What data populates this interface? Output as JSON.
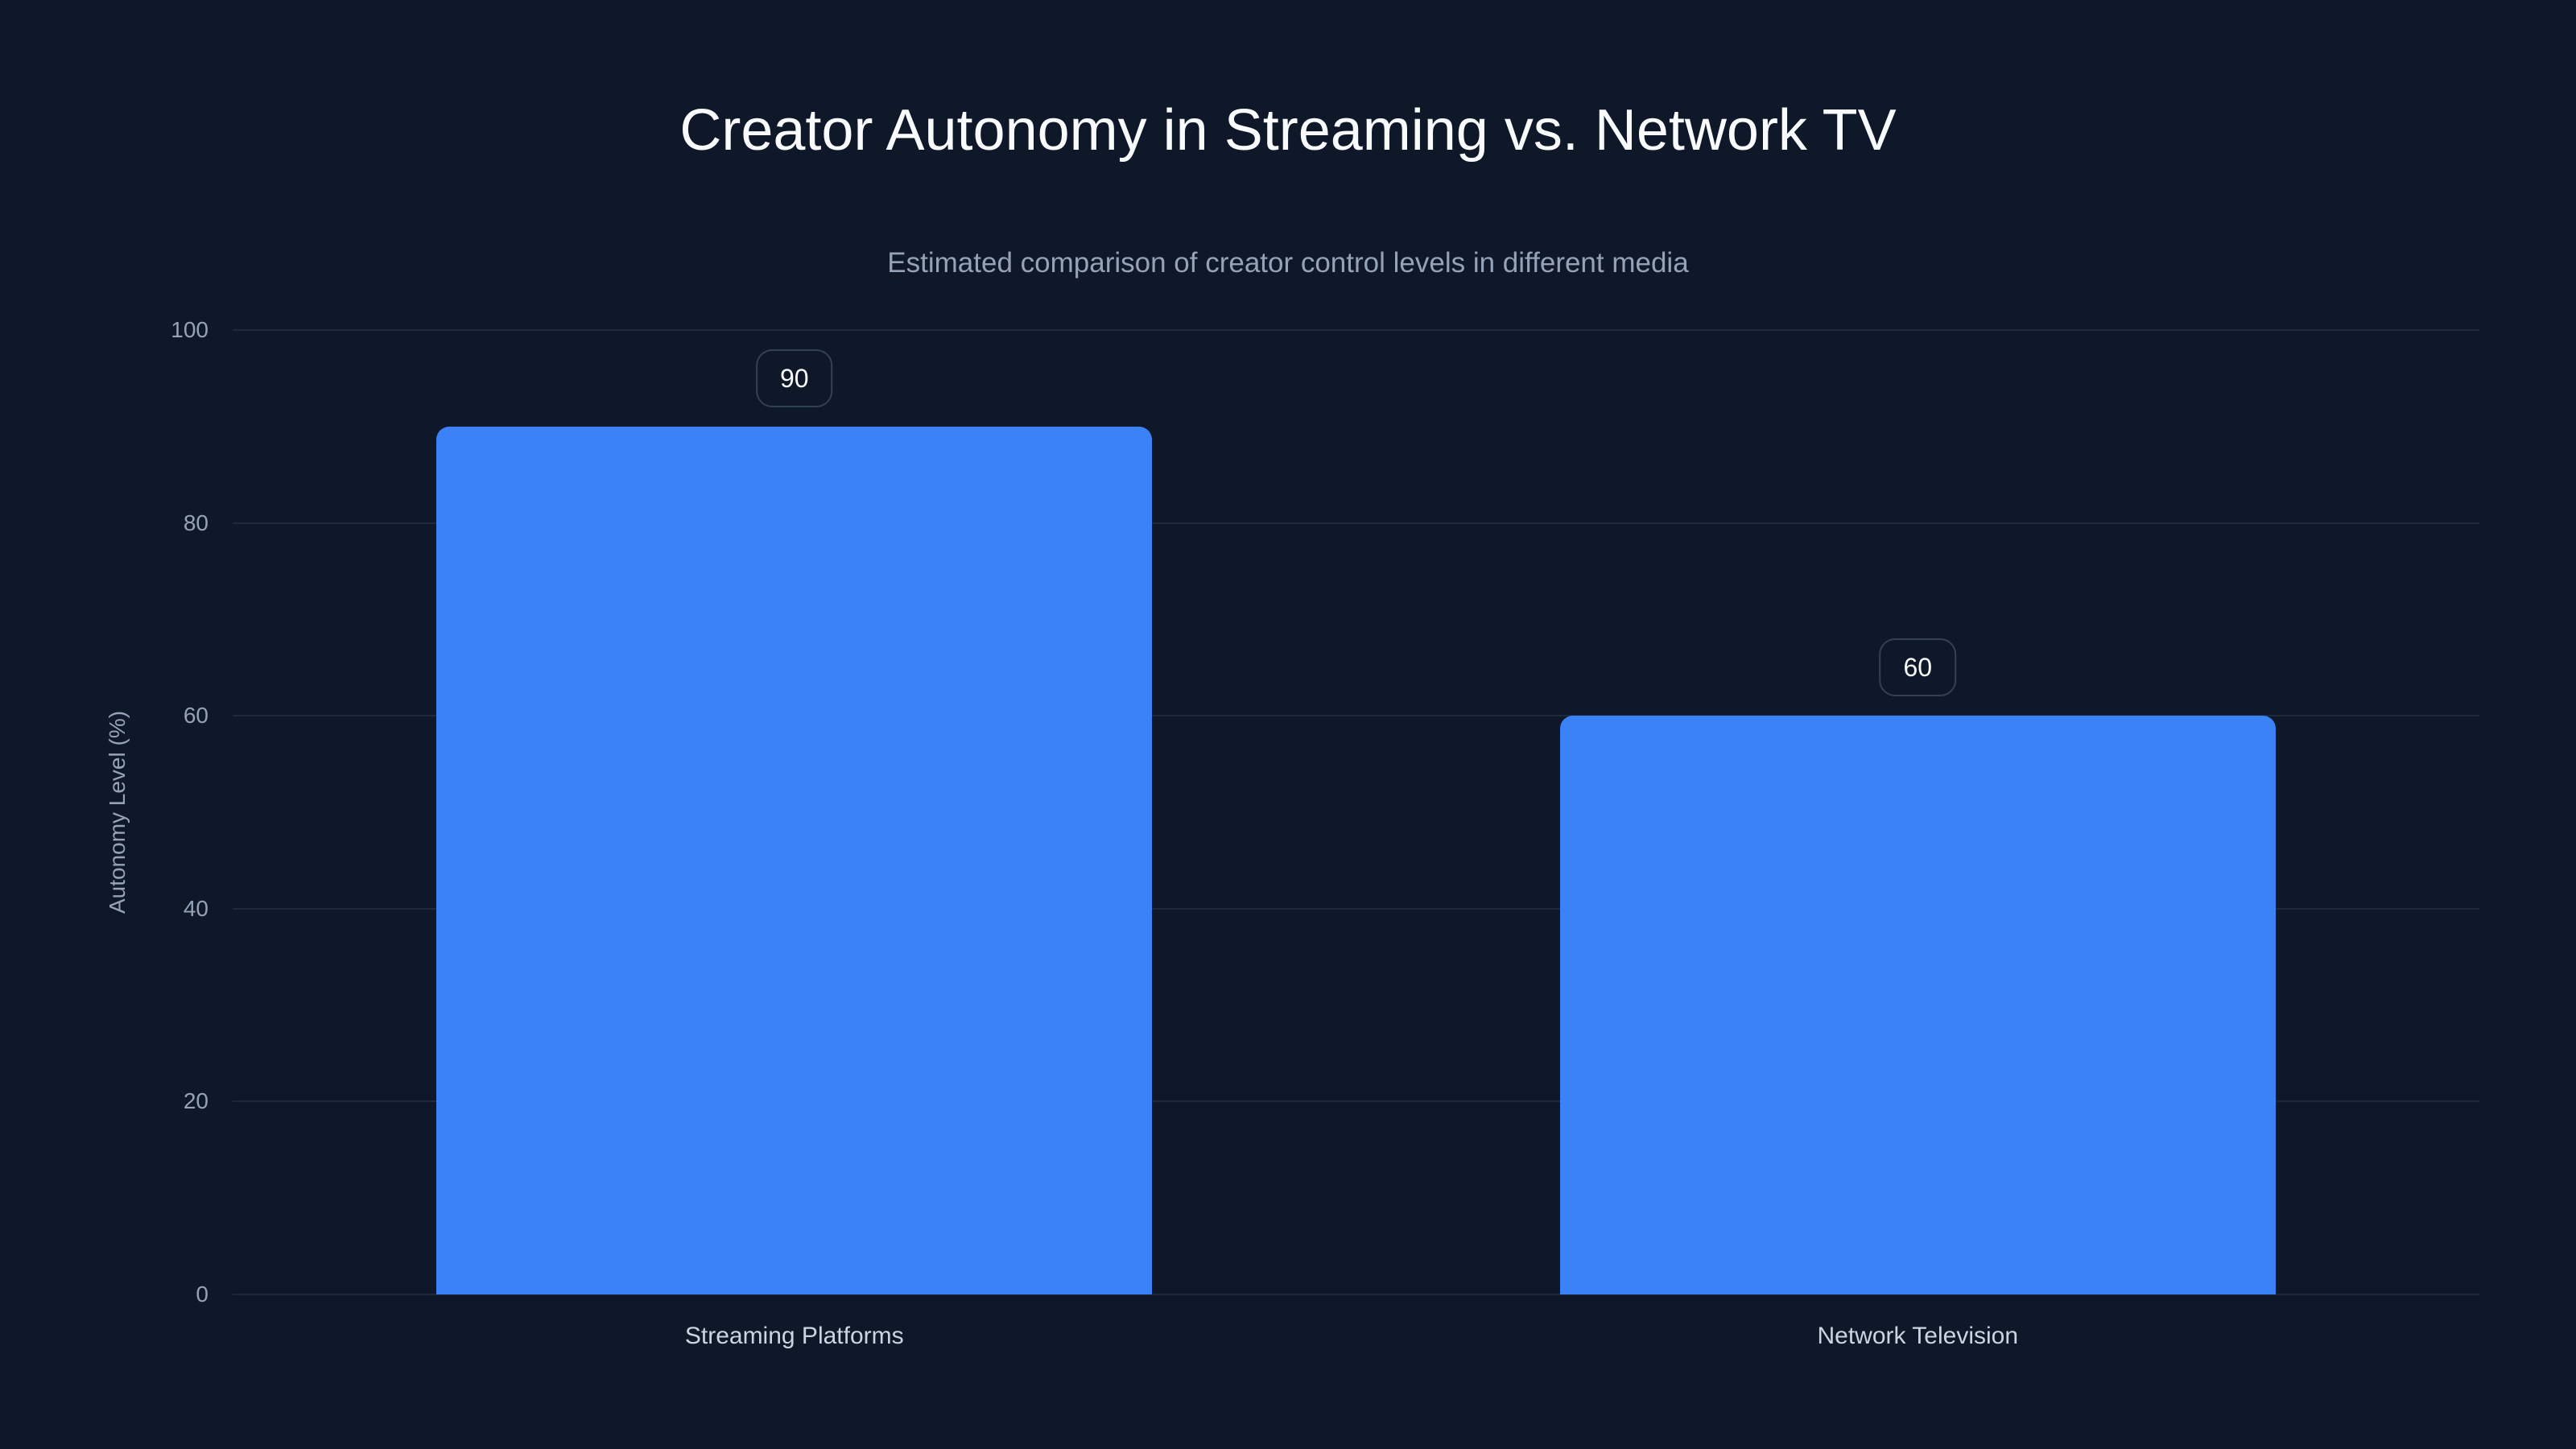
{
  "header": {
    "title": "Creator Autonomy in Streaming vs. Network TV",
    "subtitle": "Estimated comparison of creator control levels in different media"
  },
  "colors": {
    "background": "#0f1829",
    "bar": "#3b82f6",
    "grid": "#1e293b",
    "title": "#f8fafc",
    "axis_text": "#94a3b8",
    "category_text": "#cbd5e1",
    "badge_border": "#334155"
  },
  "axis": {
    "ylabel": "Autonomy Level (%)",
    "yticks": [
      "0",
      "20",
      "40",
      "60",
      "80",
      "100"
    ]
  },
  "bars": [
    {
      "label": "Streaming Platforms",
      "value": 90,
      "value_label": "90"
    },
    {
      "label": "Network Television",
      "value": 60,
      "value_label": "60"
    }
  ],
  "chart_data": {
    "type": "bar",
    "title": "Creator Autonomy in Streaming vs. Network TV",
    "subtitle": "Estimated comparison of creator control levels in different media",
    "categories": [
      "Streaming Platforms",
      "Network Television"
    ],
    "values": [
      90,
      60
    ],
    "xlabel": "",
    "ylabel": "Autonomy Level (%)",
    "ylim": [
      0,
      100
    ],
    "yticks": [
      0,
      20,
      40,
      60,
      80,
      100
    ],
    "grid": true,
    "legend": null,
    "data_labels": true,
    "colors": [
      "#3b82f6",
      "#3b82f6"
    ]
  }
}
